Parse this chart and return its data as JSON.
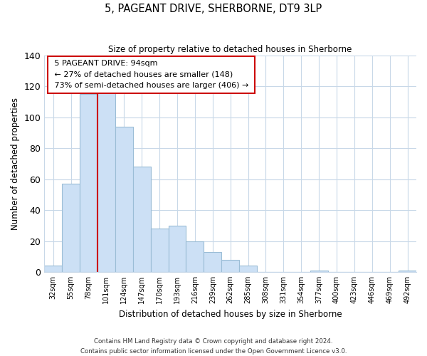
{
  "title": "5, PAGEANT DRIVE, SHERBORNE, DT9 3LP",
  "subtitle": "Size of property relative to detached houses in Sherborne",
  "xlabel": "Distribution of detached houses by size in Sherborne",
  "ylabel": "Number of detached properties",
  "bar_labels": [
    "32sqm",
    "55sqm",
    "78sqm",
    "101sqm",
    "124sqm",
    "147sqm",
    "170sqm",
    "193sqm",
    "216sqm",
    "239sqm",
    "262sqm",
    "285sqm",
    "308sqm",
    "331sqm",
    "354sqm",
    "377sqm",
    "400sqm",
    "423sqm",
    "446sqm",
    "469sqm",
    "492sqm"
  ],
  "bar_values": [
    4,
    57,
    115,
    116,
    94,
    68,
    28,
    30,
    20,
    13,
    8,
    4,
    0,
    0,
    0,
    1,
    0,
    0,
    0,
    0,
    1
  ],
  "bar_color": "#cce0f5",
  "bar_edge_color": "#9bbdd6",
  "vline_color": "#cc0000",
  "ylim": [
    0,
    140
  ],
  "yticks": [
    0,
    20,
    40,
    60,
    80,
    100,
    120,
    140
  ],
  "annotation_title": "5 PAGEANT DRIVE: 94sqm",
  "annotation_line1": "← 27% of detached houses are smaller (148)",
  "annotation_line2": "73% of semi-detached houses are larger (406) →",
  "annotation_box_color": "#ffffff",
  "annotation_box_edge": "#cc0000",
  "footer_line1": "Contains HM Land Registry data © Crown copyright and database right 2024.",
  "footer_line2": "Contains public sector information licensed under the Open Government Licence v3.0.",
  "background_color": "#ffffff",
  "grid_color": "#c8d8e8"
}
